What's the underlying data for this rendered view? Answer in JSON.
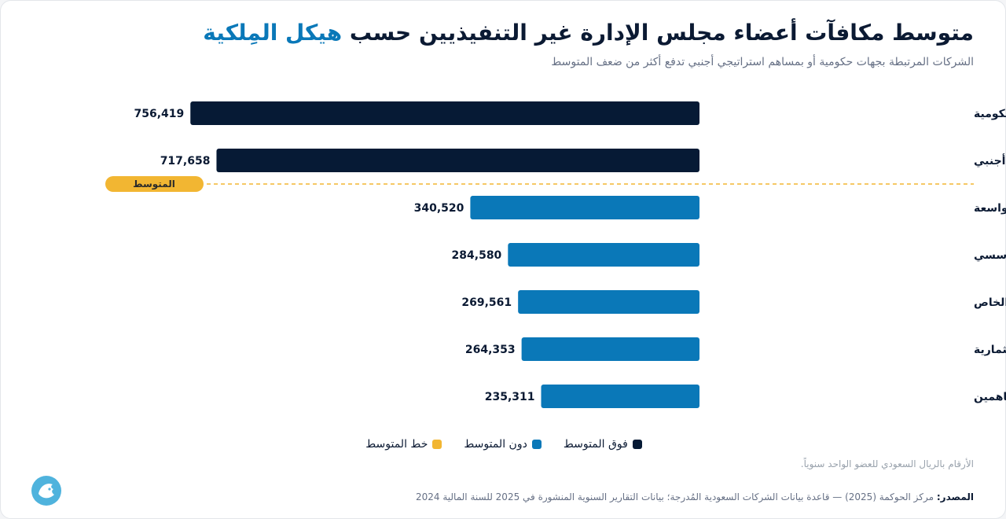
{
  "header": {
    "title_main": "متوسط مكافآت أعضاء مجلس الإدارة غير التنفيذيين حسب",
    "title_accent": "هيكل المِلكية",
    "subtitle": "الشركات المرتبطة بجهات حكومية أو بمساهم استراتيجي أجنبي تدفع أكثر من ضعف المتوسط"
  },
  "colors": {
    "above_average": "#061a35",
    "below_average": "#0a78b8",
    "average_line": "#f2b632",
    "accent": "#0a78b8"
  },
  "chart_data": {
    "type": "bar",
    "orientation": "horizontal",
    "categories": [
      "مرتبطة بجهات حكومية",
      "يقودها مساهم استراتيجي أجنبي",
      "قاعدة مِلكية واسعة",
      "يقودها مساهم استراتيجي مؤسسي",
      "تخضع لسيطرة عائلية أو مؤسس أو كبار ملاك القطاع الخاص",
      "تقودها مؤسسة مالية / استثمارية",
      "مِلكية مختلطة لكبار المساهمين"
    ],
    "values": [
      756419,
      717658,
      340520,
      284580,
      269561,
      264353,
      235311
    ],
    "value_labels": [
      "756,419",
      "717,658",
      "340,520",
      "284,580",
      "269,561",
      "264,353",
      "235,311"
    ],
    "groups": [
      "above",
      "above",
      "below",
      "below",
      "below",
      "below",
      "below"
    ],
    "xlim": [
      0,
      870000
    ],
    "average_label": "المتوسط",
    "average_after_index": 1,
    "legend": [
      "فوق المتوسط",
      "دون المتوسط",
      "خط المتوسط"
    ],
    "legend_position": "bottom-center"
  },
  "footer": {
    "note": "الأرقام بالريال السعودي للعضو الواحد سنوياً.",
    "source_label": "المصدر:",
    "source_text": "مركز الحوكمة (2025) — قاعدة بيانات الشركات السعودية المُدرجة؛ بيانات التقارير السنوية المنشورة في 2025 للسنة المالية 2024"
  }
}
